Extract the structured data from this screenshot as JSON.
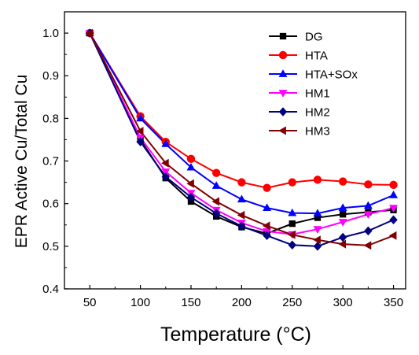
{
  "chart_data": {
    "type": "line",
    "title": "",
    "xlabel": "Temperature (°C)",
    "ylabel": "EPR Active Cu/Total Cu",
    "xlim": [
      25,
      362
    ],
    "ylim": [
      0.4,
      1.05
    ],
    "x_ticks": [
      50,
      100,
      150,
      200,
      250,
      300,
      350
    ],
    "y_ticks": [
      0.4,
      0.5,
      0.6,
      0.7,
      0.8,
      0.9,
      1.0
    ],
    "x_tick_labels": [
      "50",
      "100",
      "150",
      "200",
      "250",
      "300",
      "350"
    ],
    "y_tick_labels": [
      "0.4",
      "0.5",
      "0.6",
      "0.7",
      "0.8",
      "0.9",
      "1.0"
    ],
    "grid": false,
    "legend_position": "top-right",
    "x": [
      50,
      100,
      125,
      150,
      175,
      200,
      225,
      250,
      275,
      300,
      325,
      350
    ],
    "series": [
      {
        "name": "DG",
        "color": "#000000",
        "marker": "square",
        "values": [
          1.0,
          0.75,
          0.66,
          0.605,
          0.57,
          0.545,
          0.53,
          0.553,
          0.567,
          0.575,
          0.58,
          0.585
        ]
      },
      {
        "name": "HTA",
        "color": "#ff0000",
        "marker": "circle",
        "values": [
          1.0,
          0.805,
          0.745,
          0.705,
          0.672,
          0.65,
          0.637,
          0.65,
          0.656,
          0.652,
          0.645,
          0.644
        ]
      },
      {
        "name": "HTA+SOx",
        "color": "#0000ff",
        "marker": "triangle-up",
        "values": [
          1.0,
          0.8,
          0.74,
          0.685,
          0.642,
          0.61,
          0.59,
          0.578,
          0.577,
          0.59,
          0.595,
          0.62
        ]
      },
      {
        "name": "HM1",
        "color": "#ff00ff",
        "marker": "triangle-down",
        "values": [
          1.0,
          0.755,
          0.675,
          0.625,
          0.585,
          0.555,
          0.535,
          0.528,
          0.54,
          0.557,
          0.575,
          0.59
        ]
      },
      {
        "name": "HM2",
        "color": "#000080",
        "marker": "diamond",
        "values": [
          1.0,
          0.745,
          0.663,
          0.615,
          0.577,
          0.547,
          0.525,
          0.503,
          0.5,
          0.521,
          0.536,
          0.562
        ]
      },
      {
        "name": "HM3",
        "color": "#800000",
        "marker": "triangle-left",
        "values": [
          1.0,
          0.77,
          0.695,
          0.647,
          0.605,
          0.573,
          0.548,
          0.527,
          0.515,
          0.505,
          0.502,
          0.525
        ]
      }
    ]
  }
}
